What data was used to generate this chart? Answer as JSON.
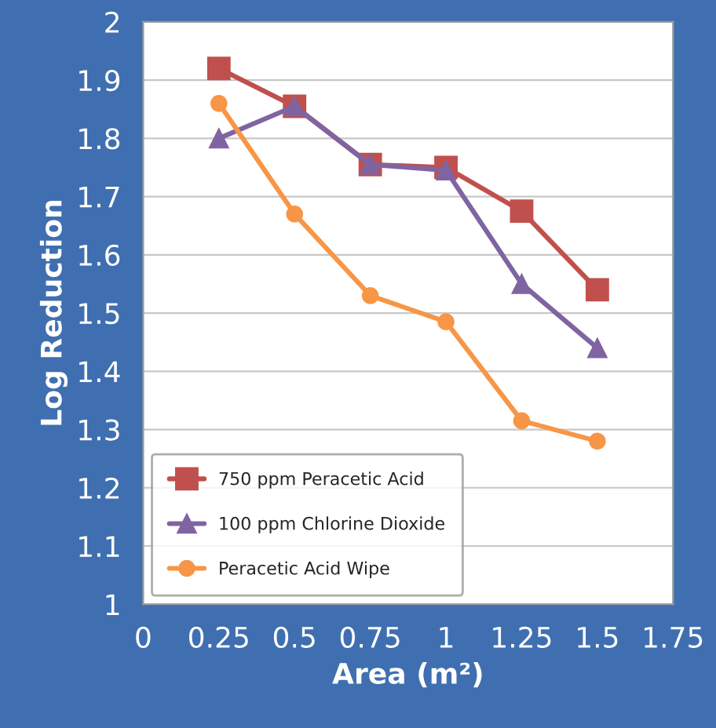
{
  "chart_data": {
    "type": "line",
    "xlabel": "Area (m²)",
    "ylabel": "Log Reduction",
    "x": [
      0.25,
      0.5,
      0.75,
      1,
      1.25,
      1.5
    ],
    "series": [
      {
        "name": "750 ppm Peracetic Acid",
        "color": "#c0504d",
        "marker": "square",
        "values": [
          1.92,
          1.855,
          1.755,
          1.75,
          1.675,
          1.54
        ]
      },
      {
        "name": "100 ppm Chlorine Dioxide",
        "color": "#8064a2",
        "marker": "triangle",
        "values": [
          1.8,
          1.855,
          1.755,
          1.745,
          1.55,
          1.44
        ]
      },
      {
        "name": "Peracetic Acid Wipe",
        "color": "#f79646",
        "marker": "circle",
        "values": [
          1.86,
          1.67,
          1.53,
          1.485,
          1.315,
          1.28
        ]
      }
    ],
    "xlim": [
      0,
      1.75
    ],
    "xticks": [
      0,
      0.25,
      0.5,
      0.75,
      1,
      1.25,
      1.5,
      1.75
    ],
    "ylim": [
      1,
      2
    ],
    "yticks": [
      1,
      1.1,
      1.2,
      1.3,
      1.4,
      1.5,
      1.6,
      1.7,
      1.8,
      1.9,
      2
    ],
    "grid": "y",
    "legend": "lower left"
  }
}
